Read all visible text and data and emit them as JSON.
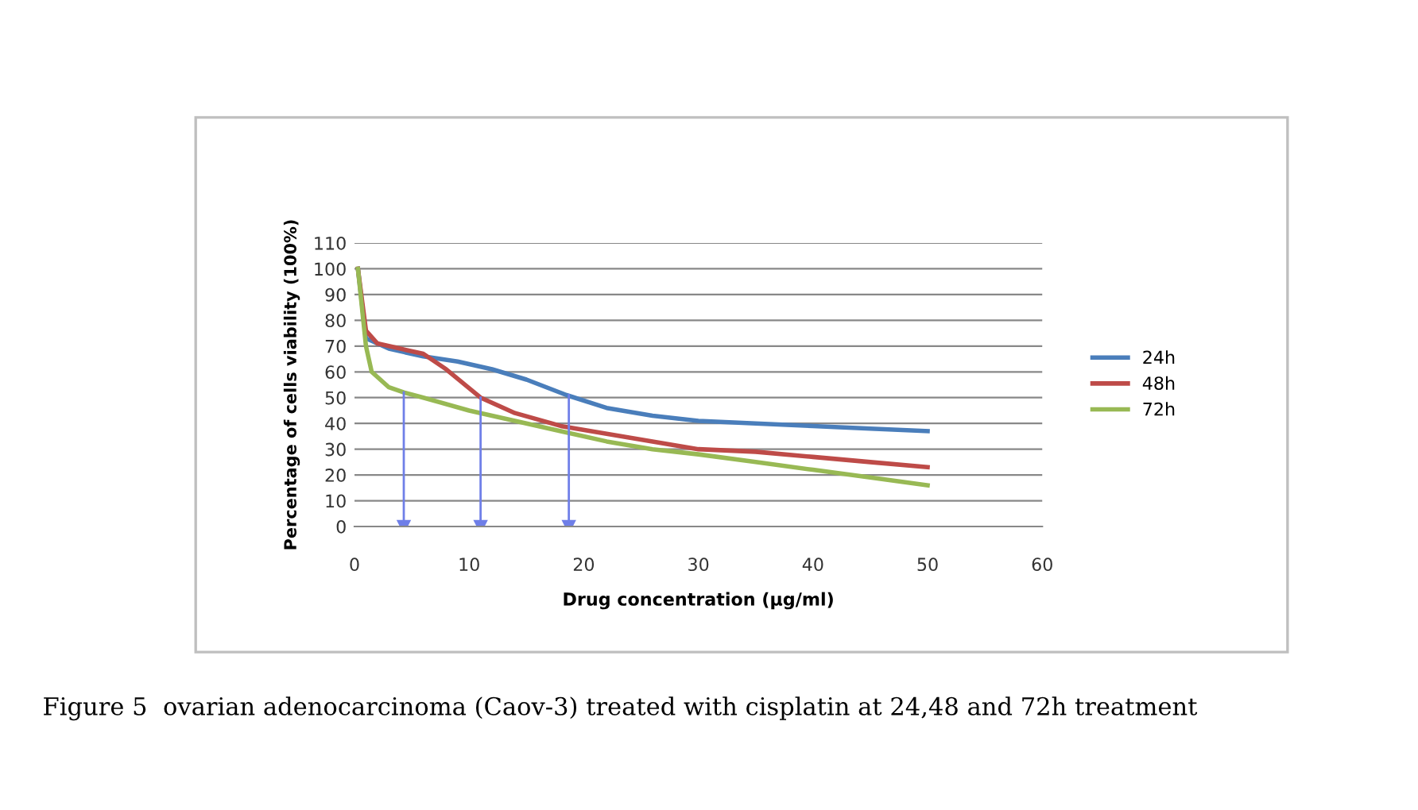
{
  "chart_data": {
    "type": "line",
    "xlabel": "Drug concentration (µg/ml)",
    "ylabel": "Percentage of cells viability (100%)",
    "xlim": [
      0,
      60
    ],
    "xticks": [
      0,
      10,
      20,
      30,
      40,
      50,
      60
    ],
    "ylim": [
      0,
      110
    ],
    "yticks": [
      0,
      10,
      20,
      30,
      40,
      50,
      60,
      70,
      80,
      90,
      100,
      110
    ],
    "grid": "y",
    "legend": "right",
    "marker": "none",
    "line_style": "solid",
    "series": [
      {
        "name": "24h",
        "color": "#4a7ebb",
        "x": [
          0.3,
          1,
          3,
          6,
          9,
          12,
          15,
          18.5,
          22,
          26,
          30,
          35,
          40,
          45,
          50
        ],
        "values": [
          100,
          73,
          69,
          66,
          64,
          61,
          57,
          51,
          46,
          43,
          41,
          40,
          39,
          38,
          37
        ]
      },
      {
        "name": "48h",
        "color": "#be4b48",
        "x": [
          0.3,
          1,
          2,
          4,
          6,
          8,
          11,
          14,
          18,
          22,
          26,
          30,
          35,
          40,
          45,
          50
        ],
        "values": [
          100,
          76,
          71,
          69,
          67,
          61,
          50,
          44,
          39,
          36,
          33,
          30,
          29,
          27,
          25,
          23
        ]
      },
      {
        "name": "72h",
        "color": "#98b954",
        "x": [
          0.3,
          1,
          1.5,
          3,
          4.3,
          6,
          10,
          14,
          18,
          22,
          26,
          30,
          35,
          40,
          45,
          50
        ],
        "values": [
          100,
          70,
          60,
          54,
          52,
          50,
          45,
          41,
          37,
          33,
          30,
          28,
          25,
          22,
          19,
          16
        ]
      },
      {
        "color": "#6f7fe8",
        "marker": "triangle",
        "x": [
          4.3,
          4.3
        ],
        "values": [
          52,
          0
        ]
      },
      {
        "color": "#6f7fe8",
        "marker": "triangle",
        "x": [
          11,
          11
        ],
        "values": [
          50,
          0
        ]
      },
      {
        "color": "#6f7fe8",
        "marker": "triangle",
        "x": [
          18.7,
          18.7
        ],
        "values": [
          51,
          0
        ]
      }
    ],
    "annotations": [
      "Figure 5  ovarian adenocarcinoma (Caov-3) treated with cisplatin at 24,48 and 72h treatment"
    ]
  }
}
